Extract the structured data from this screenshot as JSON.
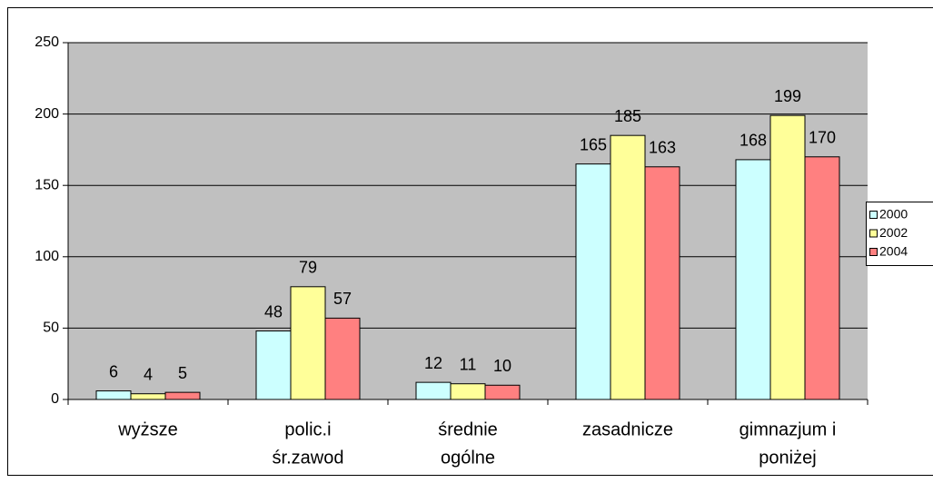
{
  "chart_data": {
    "type": "bar",
    "categories": [
      [
        "wyższe"
      ],
      [
        "polic.i",
        "śr.zawod"
      ],
      [
        "średnie",
        "ogólne"
      ],
      [
        "zasadnicze"
      ],
      [
        "gimnazjum i",
        "poniżej"
      ]
    ],
    "series": [
      {
        "name": "2000",
        "color": "#ccffff",
        "values": [
          6,
          48,
          12,
          165,
          168
        ]
      },
      {
        "name": "2002",
        "color": "#ffff99",
        "values": [
          4,
          79,
          11,
          185,
          199
        ]
      },
      {
        "name": "2004",
        "color": "#ff8080",
        "values": [
          5,
          57,
          10,
          163,
          170
        ]
      }
    ],
    "ylim": [
      0,
      250
    ],
    "yticks": [
      0,
      50,
      100,
      150,
      200,
      250
    ],
    "grid": true,
    "legend": "right",
    "plot_background": "#c0c0c0"
  }
}
